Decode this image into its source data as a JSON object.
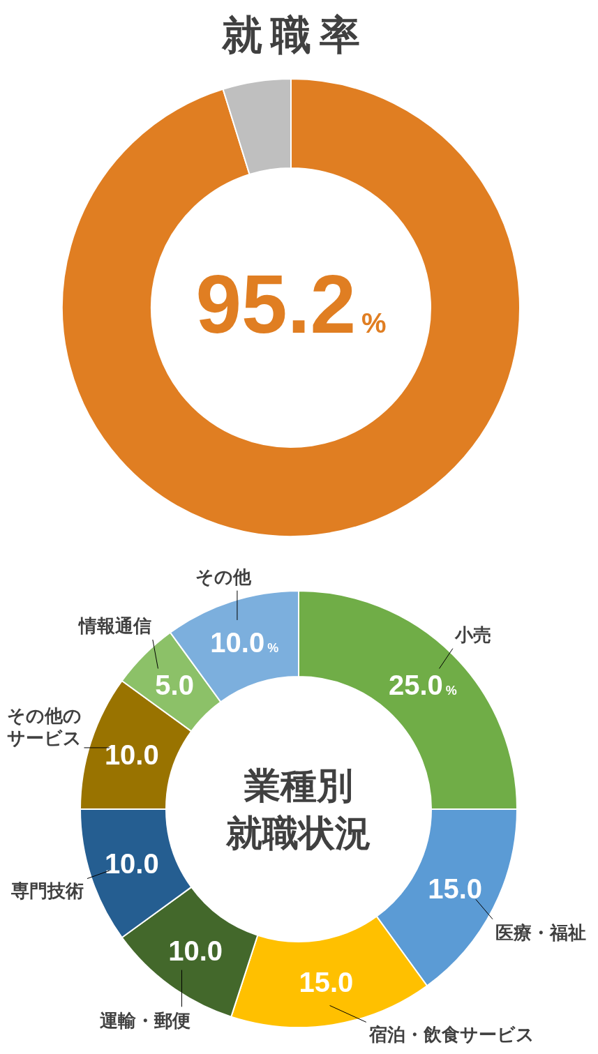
{
  "chart_data": [
    {
      "type": "donut",
      "title": "就職率",
      "categories": [
        null,
        null
      ],
      "values": [
        95.2,
        4.8
      ],
      "colors": [
        "#e07e22",
        "#bfbfbf"
      ],
      "annotations": [
        "95.2%"
      ]
    },
    {
      "type": "donut",
      "title": "業種別就職状況",
      "categories": [
        "小売",
        "医療・福祉",
        "宿泊・飲食サービス",
        "運輸・郵便",
        "専門技術",
        "その他のサービス",
        "情報通信",
        "その他"
      ],
      "values": [
        25.0,
        15.0,
        15.0,
        10.0,
        10.0,
        10.0,
        5.0,
        10.0
      ],
      "colors": [
        "#70ad47",
        "#5b9bd5",
        "#ffc000",
        "#43682b",
        "#255e91",
        "#997300",
        "#8cc168",
        "#7cafdd"
      ],
      "value_labels": [
        "25.0%",
        "15.0",
        "15.0",
        "10.0",
        "10.0",
        "10.0",
        "5.0",
        "10.0%"
      ]
    }
  ]
}
